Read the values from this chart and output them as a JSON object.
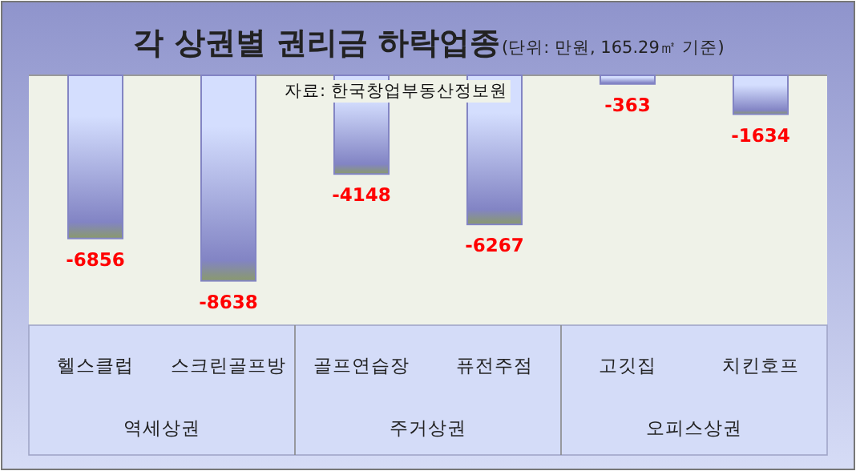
{
  "chart_data": {
    "type": "bar",
    "title": "각 상권별 권리금 하락업종",
    "subtitle": "(단위: 만원, 165.29㎡ 기준)",
    "categories": [
      "헬스클럽",
      "스크린골프방",
      "골프연습장",
      "퓨전주점",
      "고깃집",
      "치킨호프"
    ],
    "values": [
      -6856,
      -8638,
      -4148,
      -6267,
      -363,
      -1634
    ],
    "color": "#8284c4",
    "data_labels": true,
    "annotations": [
      "자료: 한국창업부동산정보원",
      "역세상권",
      "주거상권",
      "오피스상권"
    ]
  }
}
